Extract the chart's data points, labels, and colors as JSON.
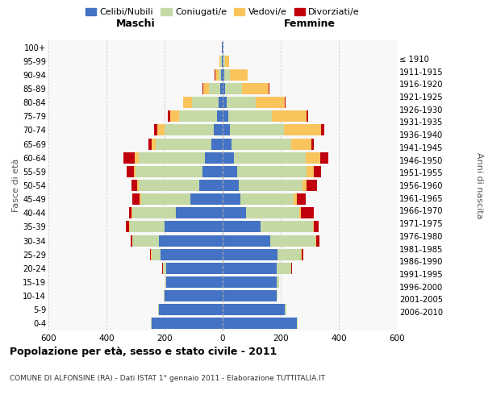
{
  "age_groups": [
    "0-4",
    "5-9",
    "10-14",
    "15-19",
    "20-24",
    "25-29",
    "30-34",
    "35-39",
    "40-44",
    "45-49",
    "50-54",
    "55-59",
    "60-64",
    "65-69",
    "70-74",
    "75-79",
    "80-84",
    "85-89",
    "90-94",
    "95-99",
    "100+"
  ],
  "birth_years": [
    "2006-2010",
    "2001-2005",
    "1996-2000",
    "1991-1995",
    "1986-1990",
    "1981-1985",
    "1976-1980",
    "1971-1975",
    "1966-1970",
    "1961-1965",
    "1956-1960",
    "1951-1955",
    "1946-1950",
    "1941-1945",
    "1936-1940",
    "1931-1935",
    "1926-1930",
    "1921-1925",
    "1916-1920",
    "1911-1915",
    "≤ 1910"
  ],
  "male": {
    "celibi": [
      245,
      220,
      200,
      195,
      195,
      215,
      220,
      200,
      160,
      110,
      80,
      70,
      60,
      40,
      30,
      20,
      15,
      8,
      5,
      3,
      2
    ],
    "coniugati": [
      2,
      2,
      2,
      2,
      10,
      30,
      90,
      120,
      150,
      170,
      210,
      230,
      230,
      190,
      170,
      130,
      90,
      40,
      10,
      5,
      1
    ],
    "vedovi": [
      0,
      0,
      0,
      0,
      0,
      2,
      2,
      3,
      3,
      5,
      5,
      5,
      12,
      15,
      25,
      30,
      30,
      20,
      10,
      3,
      0
    ],
    "divorziati": [
      0,
      0,
      0,
      0,
      2,
      3,
      5,
      10,
      10,
      25,
      20,
      25,
      40,
      10,
      12,
      8,
      2,
      2,
      2,
      0,
      0
    ]
  },
  "female": {
    "nubili": [
      255,
      215,
      185,
      185,
      185,
      190,
      165,
      130,
      80,
      60,
      55,
      50,
      40,
      30,
      25,
      20,
      15,
      8,
      5,
      3,
      2
    ],
    "coniugate": [
      3,
      5,
      5,
      10,
      50,
      80,
      155,
      180,
      185,
      185,
      220,
      240,
      245,
      205,
      185,
      150,
      100,
      60,
      20,
      5,
      1
    ],
    "vedove": [
      0,
      0,
      0,
      0,
      2,
      3,
      3,
      5,
      5,
      10,
      15,
      25,
      50,
      70,
      130,
      120,
      100,
      90,
      60,
      15,
      1
    ],
    "divorziate": [
      0,
      0,
      0,
      0,
      2,
      5,
      10,
      15,
      45,
      30,
      35,
      25,
      30,
      8,
      10,
      5,
      2,
      2,
      2,
      0,
      0
    ]
  },
  "colors": {
    "celibi": "#4472C4",
    "coniugati": "#C5D9A5",
    "vedovi": "#FAC45C",
    "divorziati": "#C0000C"
  },
  "xlim": 600,
  "title": "Popolazione per età, sesso e stato civile - 2011",
  "subtitle": "COMUNE DI ALFONSINE (RA) - Dati ISTAT 1° gennaio 2011 - Elaborazione TUTTITALIA.IT",
  "ylabel_left": "Fasce di età",
  "ylabel_right": "Anni di nascita",
  "xlabel_left": "Maschi",
  "xlabel_right": "Femmine"
}
